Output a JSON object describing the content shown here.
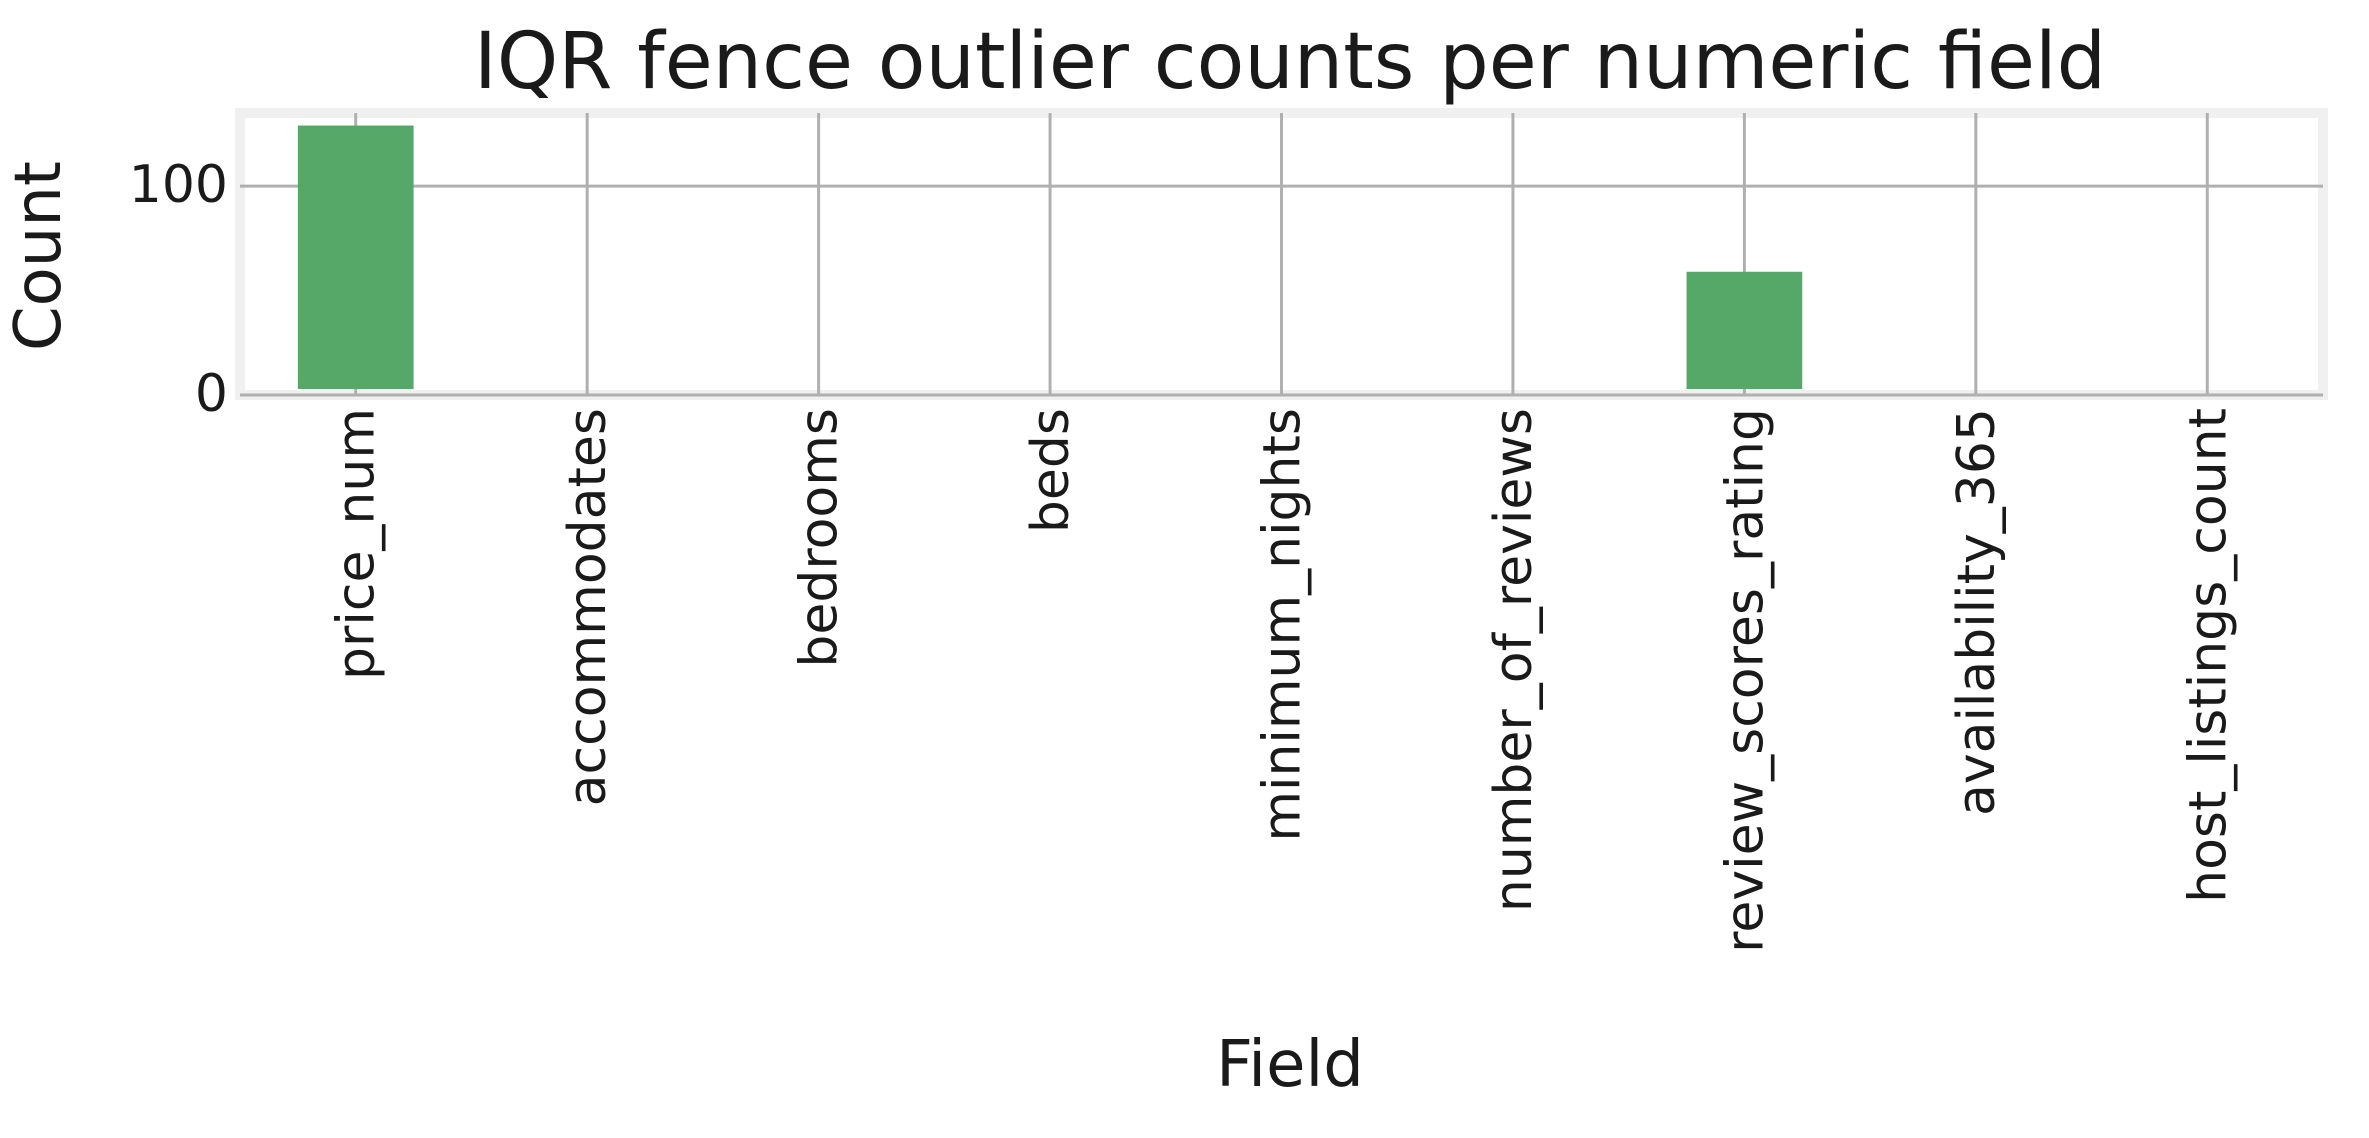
{
  "chart_data": {
    "type": "bar",
    "title": "IQR fence outlier counts per numeric field",
    "xlabel": "Field",
    "ylabel": "Count",
    "categories": [
      "price_num",
      "accommodates",
      "bedrooms",
      "beds",
      "minimum_nights",
      "number_of_reviews",
      "review_scores_rating",
      "availability_365",
      "host_listings_count"
    ],
    "values": [
      129,
      0,
      0,
      0,
      0,
      0,
      59,
      0,
      0
    ],
    "ylim": [
      0,
      135
    ],
    "yticks": [
      0,
      100
    ],
    "ytick_labels": [
      "0",
      "100"
    ],
    "grid": true,
    "bar_color": "#55a868",
    "grid_color": "#b0b0b0",
    "frame_color": "#f0f0f0"
  }
}
